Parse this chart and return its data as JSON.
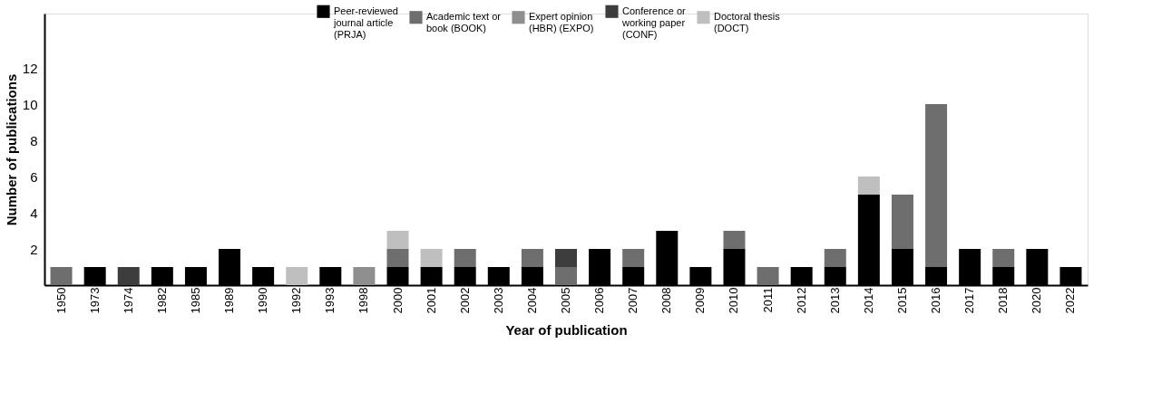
{
  "chart_data": {
    "type": "bar",
    "stacked": true,
    "xlabel": "Year of publication",
    "ylabel": "Number of publications",
    "categories": [
      "1950",
      "1973",
      "1974",
      "1982",
      "1985",
      "1989",
      "1990",
      "1992",
      "1993",
      "1998",
      "2000",
      "2001",
      "2002",
      "2003",
      "2004",
      "2005",
      "2006",
      "2007",
      "2008",
      "2009",
      "2010",
      "2011",
      "2012",
      "2013",
      "2014",
      "2015",
      "2016",
      "2017",
      "2018",
      "2020",
      "2022"
    ],
    "series": [
      {
        "name": "Peer-reviewed journal article (PRJA)",
        "color": "#000000",
        "values": [
          0,
          1,
          0,
          1,
          1,
          2,
          1,
          0,
          1,
          0,
          1,
          1,
          1,
          1,
          1,
          0,
          2,
          1,
          3,
          1,
          2,
          0,
          1,
          1,
          5,
          2,
          1,
          2,
          1,
          2,
          1
        ]
      },
      {
        "name": "Academic text or book (BOOK)",
        "color": "#6e6e6e",
        "values": [
          1,
          0,
          0,
          0,
          0,
          0,
          0,
          0,
          0,
          0,
          1,
          0,
          1,
          0,
          1,
          1,
          0,
          1,
          0,
          0,
          1,
          1,
          0,
          1,
          0,
          3,
          9,
          0,
          1,
          0,
          0
        ]
      },
      {
        "name": "Expert opinion (HBR) (EXPO)",
        "color": "#8f8f8f",
        "values": [
          0,
          0,
          0,
          0,
          0,
          0,
          0,
          0,
          0,
          1,
          0,
          0,
          0,
          0,
          0,
          0,
          0,
          0,
          0,
          0,
          0,
          0,
          0,
          0,
          0,
          0,
          0,
          0,
          0,
          0,
          0
        ]
      },
      {
        "name": "Conference or working paper (CONF)",
        "color": "#3d3d3d",
        "values": [
          0,
          0,
          1,
          0,
          0,
          0,
          0,
          0,
          0,
          0,
          0,
          0,
          0,
          0,
          0,
          1,
          0,
          0,
          0,
          0,
          0,
          0,
          0,
          0,
          0,
          0,
          0,
          0,
          0,
          0,
          0
        ]
      },
      {
        "name": "Doctoral thesis (DOCT)",
        "color": "#bfbfbf",
        "values": [
          0,
          0,
          0,
          0,
          0,
          0,
          0,
          1,
          0,
          0,
          1,
          1,
          0,
          0,
          0,
          0,
          0,
          0,
          0,
          0,
          0,
          0,
          0,
          0,
          1,
          0,
          0,
          0,
          0,
          0,
          0
        ]
      }
    ],
    "ylim": [
      0,
      15
    ],
    "yticks": [
      2,
      4,
      6,
      8,
      10,
      12
    ],
    "grid": false,
    "legend": "top"
  }
}
